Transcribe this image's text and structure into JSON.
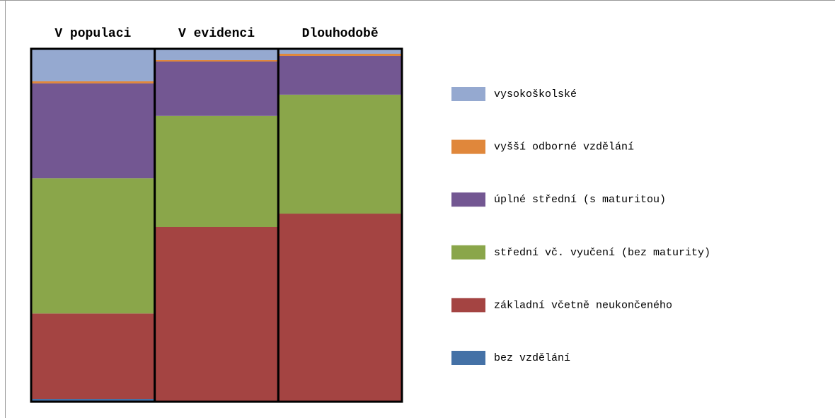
{
  "chart_data": {
    "type": "stacked_bar",
    "categories": [
      "V populaci",
      "V evidenci",
      "Dlouhodobě"
    ],
    "series": [
      {
        "name": "vysokoškolské",
        "color": "#95a9d0",
        "values": [
          9.2,
          3.2,
          1.4
        ]
      },
      {
        "name": "vyšší odborné vzdělání",
        "color": "#e0873b",
        "values": [
          0.6,
          0.4,
          0.6
        ]
      },
      {
        "name": "úplné střední (s maturitou)",
        "color": "#735792",
        "values": [
          26.9,
          15.4,
          11.0
        ]
      },
      {
        "name": "střední vč. vyučení (bez maturity)",
        "color": "#8aa64a",
        "values": [
          38.3,
          31.5,
          33.7
        ]
      },
      {
        "name": "základní včetně neukončeného",
        "color": "#a44442",
        "values": [
          24.2,
          49.3,
          53.1
        ]
      },
      {
        "name": "bez vzdělání",
        "color": "#4471a6",
        "values": [
          0.8,
          0.2,
          0.2
        ]
      }
    ],
    "legend": "right"
  }
}
